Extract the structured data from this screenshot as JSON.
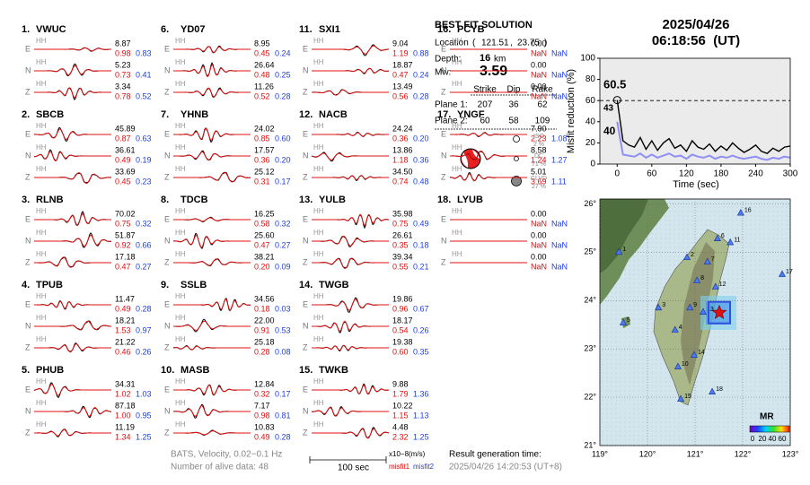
{
  "stations": [
    {
      "num": "1.",
      "name": "VWUC",
      "components": [
        {
          "comp": "E",
          "inst": "HH",
          "amp": "8.87",
          "misfit1": "0.98",
          "misfit2": "0.83"
        },
        {
          "comp": "N",
          "inst": "HH",
          "amp": "5.23",
          "misfit1": "0.73",
          "misfit2": "0.41"
        },
        {
          "comp": "Z",
          "inst": "HH",
          "amp": "3.34",
          "misfit1": "0.78",
          "misfit2": "0.52"
        }
      ]
    },
    {
      "num": "2.",
      "name": "SBCB",
      "components": [
        {
          "comp": "E",
          "inst": "HH",
          "amp": "45.89",
          "misfit1": "0.87",
          "misfit2": "0.63"
        },
        {
          "comp": "N",
          "inst": "HH",
          "amp": "36.61",
          "misfit1": "0.49",
          "misfit2": "0.19"
        },
        {
          "comp": "Z",
          "inst": "HH",
          "amp": "33.69",
          "misfit1": "0.45",
          "misfit2": "0.23"
        }
      ]
    },
    {
      "num": "3.",
      "name": "RLNB",
      "components": [
        {
          "comp": "E",
          "inst": "HH",
          "amp": "70.02",
          "misfit1": "0.75",
          "misfit2": "0.32"
        },
        {
          "comp": "N",
          "inst": "HH",
          "amp": "51.87",
          "misfit1": "0.92",
          "misfit2": "0.66"
        },
        {
          "comp": "Z",
          "inst": "HH",
          "amp": "17.18",
          "misfit1": "0.47",
          "misfit2": "0.27"
        }
      ]
    },
    {
      "num": "4.",
      "name": "TPUB",
      "components": [
        {
          "comp": "E",
          "inst": "HH",
          "amp": "11.47",
          "misfit1": "0.49",
          "misfit2": "0.28"
        },
        {
          "comp": "N",
          "inst": "HH",
          "amp": "18.21",
          "misfit1": "1.53",
          "misfit2": "0.97"
        },
        {
          "comp": "Z",
          "inst": "HH",
          "amp": "21.22",
          "misfit1": "0.46",
          "misfit2": "0.26"
        }
      ]
    },
    {
      "num": "5.",
      "name": "PHUB",
      "components": [
        {
          "comp": "E",
          "inst": "HH",
          "amp": "34.31",
          "misfit1": "1.02",
          "misfit2": "1.03"
        },
        {
          "comp": "N",
          "inst": "HH",
          "amp": "87.18",
          "misfit1": "1.00",
          "misfit2": "0.95"
        },
        {
          "comp": "Z",
          "inst": "HH",
          "amp": "11.19",
          "misfit1": "1.34",
          "misfit2": "1.25"
        }
      ]
    },
    {
      "num": "6.",
      "name": "YD07",
      "components": [
        {
          "comp": "E",
          "inst": "HH",
          "amp": "8.95",
          "misfit1": "0.45",
          "misfit2": "0.24"
        },
        {
          "comp": "N",
          "inst": "HH",
          "amp": "26.64",
          "misfit1": "0.48",
          "misfit2": "0.25"
        },
        {
          "comp": "Z",
          "inst": "HH",
          "amp": "11.26",
          "misfit1": "0.52",
          "misfit2": "0.28"
        }
      ]
    },
    {
      "num": "7.",
      "name": "YHNB",
      "components": [
        {
          "comp": "E",
          "inst": "HH",
          "amp": "24.02",
          "misfit1": "0.85",
          "misfit2": "0.60"
        },
        {
          "comp": "N",
          "inst": "HH",
          "amp": "17.57",
          "misfit1": "0.36",
          "misfit2": "0.20"
        },
        {
          "comp": "Z",
          "inst": "HH",
          "amp": "25.12",
          "misfit1": "0.31",
          "misfit2": "0.17"
        }
      ]
    },
    {
      "num": "8.",
      "name": "TDCB",
      "components": [
        {
          "comp": "E",
          "inst": "HH",
          "amp": "16.25",
          "misfit1": "0.58",
          "misfit2": "0.32"
        },
        {
          "comp": "N",
          "inst": "HH",
          "amp": "25.60",
          "misfit1": "0.47",
          "misfit2": "0.27"
        },
        {
          "comp": "Z",
          "inst": "HH",
          "amp": "38.21",
          "misfit1": "0.20",
          "misfit2": "0.09"
        }
      ]
    },
    {
      "num": "9.",
      "name": "SSLB",
      "components": [
        {
          "comp": "E",
          "inst": "HH",
          "amp": "34.56",
          "misfit1": "0.18",
          "misfit2": "0.03"
        },
        {
          "comp": "N",
          "inst": "HH",
          "amp": "22.00",
          "misfit1": "0.91",
          "misfit2": "0.53"
        },
        {
          "comp": "Z",
          "inst": "HH",
          "amp": "25.18",
          "misfit1": "0.28",
          "misfit2": "0.08"
        }
      ]
    },
    {
      "num": "10.",
      "name": "MASB",
      "components": [
        {
          "comp": "E",
          "inst": "HH",
          "amp": "12.84",
          "misfit1": "0.32",
          "misfit2": "0.17"
        },
        {
          "comp": "N",
          "inst": "HH",
          "amp": "7.17",
          "misfit1": "0.98",
          "misfit2": "0.81"
        },
        {
          "comp": "Z",
          "inst": "HH",
          "amp": "10.83",
          "misfit1": "0.49",
          "misfit2": "0.28"
        }
      ]
    },
    {
      "num": "11.",
      "name": "SXI1",
      "components": [
        {
          "comp": "E",
          "inst": "HH",
          "amp": "9.04",
          "misfit1": "1.19",
          "misfit2": "0.88"
        },
        {
          "comp": "N",
          "inst": "HH",
          "amp": "18.87",
          "misfit1": "0.47",
          "misfit2": "0.24"
        },
        {
          "comp": "Z",
          "inst": "HH",
          "amp": "13.49",
          "misfit1": "0.56",
          "misfit2": "0.28"
        }
      ]
    },
    {
      "num": "12.",
      "name": "NACB",
      "components": [
        {
          "comp": "E",
          "inst": "HH",
          "amp": "24.24",
          "misfit1": "0.36",
          "misfit2": "0.20"
        },
        {
          "comp": "N",
          "inst": "HH",
          "amp": "13.86",
          "misfit1": "1.18",
          "misfit2": "0.36"
        },
        {
          "comp": "Z",
          "inst": "HH",
          "amp": "34.50",
          "misfit1": "0.74",
          "misfit2": "0.48"
        }
      ]
    },
    {
      "num": "13.",
      "name": "YULB",
      "components": [
        {
          "comp": "E",
          "inst": "HH",
          "amp": "35.98",
          "misfit1": "0.75",
          "misfit2": "0.49"
        },
        {
          "comp": "N",
          "inst": "HH",
          "amp": "26.61",
          "misfit1": "0.35",
          "misfit2": "0.18"
        },
        {
          "comp": "Z",
          "inst": "HH",
          "amp": "39.34",
          "misfit1": "0.55",
          "misfit2": "0.21"
        }
      ]
    },
    {
      "num": "14.",
      "name": "TWGB",
      "components": [
        {
          "comp": "E",
          "inst": "HH",
          "amp": "19.86",
          "misfit1": "0.96",
          "misfit2": "0.67"
        },
        {
          "comp": "N",
          "inst": "HH",
          "amp": "18.17",
          "misfit1": "0.54",
          "misfit2": "0.26"
        },
        {
          "comp": "Z",
          "inst": "HH",
          "amp": "19.38",
          "misfit1": "0.60",
          "misfit2": "0.35"
        }
      ]
    },
    {
      "num": "15.",
      "name": "TWKB",
      "components": [
        {
          "comp": "E",
          "inst": "HH",
          "amp": "9.88",
          "misfit1": "1.79",
          "misfit2": "1.36"
        },
        {
          "comp": "N",
          "inst": "HH",
          "amp": "10.22",
          "misfit1": "1.15",
          "misfit2": "1.13"
        },
        {
          "comp": "Z",
          "inst": "HH",
          "amp": "4.48",
          "misfit1": "2.32",
          "misfit2": "1.25"
        }
      ]
    },
    {
      "num": "16.",
      "name": "PCYB",
      "components": [
        {
          "comp": "E",
          "inst": "HH",
          "amp": "0.00",
          "misfit1": "NaN",
          "misfit2": "NaN"
        },
        {
          "comp": "N",
          "inst": "HH",
          "amp": "0.00",
          "misfit1": "NaN",
          "misfit2": "NaN"
        },
        {
          "comp": "Z",
          "inst": "HH",
          "amp": "0.00",
          "misfit1": "NaN",
          "misfit2": "NaN"
        }
      ]
    },
    {
      "num": "17.",
      "name": "YNGF",
      "components": [
        {
          "comp": "E",
          "inst": "HH",
          "amp": "7.90",
          "misfit1": "2.23",
          "misfit2": "1.08"
        },
        {
          "comp": "N",
          "inst": "HH",
          "amp": "8.58",
          "misfit1": "1.24",
          "misfit2": "1.27"
        },
        {
          "comp": "Z",
          "inst": "HH",
          "amp": "5.01",
          "misfit1": "3.69",
          "misfit2": "1.11"
        }
      ]
    },
    {
      "num": "18.",
      "name": "LYUB",
      "components": [
        {
          "comp": "E",
          "inst": "HH",
          "amp": "0.00",
          "misfit1": "NaN",
          "misfit2": "NaN"
        },
        {
          "comp": "N",
          "inst": "HH",
          "amp": "0.00",
          "misfit1": "NaN",
          "misfit2": "NaN"
        },
        {
          "comp": "Z",
          "inst": "HH",
          "amp": "0.00",
          "misfit1": "NaN",
          "misfit2": "NaN"
        }
      ]
    }
  ],
  "solution": {
    "title": "BEST FIT SOLUTION",
    "location_label": "Location",
    "lon": 121.51,
    "lat": 23.75,
    "depth_label": "Depth:",
    "depth": 16,
    "depth_unit": "km",
    "mw_label": "Mw:",
    "mw": "3.59",
    "headers": [
      "Strike",
      "Dip",
      "Rake"
    ],
    "planes": [
      {
        "label": "Plane 1:",
        "values": [
          207,
          36,
          62
        ]
      },
      {
        "label": "Plane 2:",
        "values": [
          60,
          58,
          109
        ]
      }
    ],
    "components": [
      {
        "name": "ISO",
        "pct": "2 %"
      },
      {
        "name": "DC",
        "pct": "71 %"
      },
      {
        "name": "CLVD",
        "pct": "27 %"
      }
    ]
  },
  "datetime": {
    "date": "2025/04/26",
    "time": "06:18:56  (UT)"
  },
  "chart_data": {
    "type": "line",
    "xlabel": "Time (sec)",
    "ylabel": "Misfit reduction (%)",
    "xlim": [
      -30,
      300
    ],
    "ylim": [
      0,
      100
    ],
    "xticks": [
      0,
      60,
      120,
      180,
      240,
      300
    ],
    "yticks": [
      0,
      20,
      40,
      60,
      80,
      100
    ],
    "x": [
      0,
      10,
      20,
      30,
      40,
      50,
      60,
      70,
      80,
      90,
      100,
      110,
      120,
      130,
      140,
      150,
      160,
      170,
      180,
      190,
      200,
      210,
      220,
      230,
      240,
      250,
      260,
      270,
      280,
      290,
      300
    ],
    "series": [
      {
        "name": "misfit1",
        "color": "#000000",
        "values": [
          60.5,
          22,
          18,
          16,
          25,
          14,
          22,
          13,
          20,
          24,
          15,
          18,
          12,
          22,
          16,
          14,
          19,
          12,
          17,
          13,
          20,
          15,
          11,
          14,
          18,
          12,
          10,
          15,
          12,
          16,
          17
        ]
      },
      {
        "name": "misfit2",
        "color": "#8f8ff5",
        "values": [
          40,
          9,
          8,
          7,
          10,
          6,
          9,
          6,
          8,
          10,
          7,
          8,
          5,
          9,
          7,
          6,
          8,
          5,
          7,
          6,
          8,
          6,
          5,
          6,
          7,
          5,
          4,
          6,
          5,
          7,
          6
        ]
      }
    ],
    "annotations": [
      "60.5",
      "43",
      "40"
    ],
    "threshold": 60
  },
  "map": {
    "xlim": [
      119,
      123
    ],
    "ylim": [
      21,
      26.1
    ],
    "xticks": [
      {
        "value": 119,
        "label": "119°"
      },
      {
        "value": 120,
        "label": "120°"
      },
      {
        "value": 121,
        "label": "121°"
      },
      {
        "value": 122,
        "label": "122°"
      },
      {
        "value": 123,
        "label": "123°"
      }
    ],
    "yticks": [
      {
        "value": 21,
        "label": "21°"
      },
      {
        "value": 22,
        "label": "22°"
      },
      {
        "value": 23,
        "label": "23°"
      },
      {
        "value": 24,
        "label": "24°"
      },
      {
        "value": 25,
        "label": "25°"
      },
      {
        "value": 26,
        "label": "26°"
      }
    ],
    "stations": [
      {
        "label": "1",
        "lon": 119.4,
        "lat": 25.0
      },
      {
        "label": "2",
        "lon": 120.83,
        "lat": 24.89
      },
      {
        "label": "3",
        "lon": 120.23,
        "lat": 23.85
      },
      {
        "label": "4",
        "lon": 120.58,
        "lat": 23.39
      },
      {
        "label": "5",
        "lon": 119.49,
        "lat": 23.54
      },
      {
        "label": "6",
        "lon": 121.47,
        "lat": 25.28
      },
      {
        "label": "7",
        "lon": 121.26,
        "lat": 24.8
      },
      {
        "label": "8",
        "lon": 121.04,
        "lat": 24.41
      },
      {
        "label": "9",
        "lon": 120.89,
        "lat": 23.85
      },
      {
        "label": "10",
        "lon": 120.64,
        "lat": 22.63
      },
      {
        "label": "11",
        "lon": 121.74,
        "lat": 25.2
      },
      {
        "label": "12",
        "lon": 121.43,
        "lat": 24.28
      },
      {
        "label": "13",
        "lon": 121.17,
        "lat": 23.76
      },
      {
        "label": "14",
        "lon": 120.98,
        "lat": 22.87
      },
      {
        "label": "15",
        "lon": 120.7,
        "lat": 21.96
      },
      {
        "label": "16",
        "lon": 121.96,
        "lat": 25.81
      },
      {
        "label": "17",
        "lon": 122.83,
        "lat": 24.54
      },
      {
        "label": "18",
        "lon": 121.36,
        "lat": 22.11
      }
    ],
    "colorbar": {
      "title": "MR",
      "ticks": [
        "0",
        "20",
        "40",
        "60"
      ]
    }
  },
  "footer": {
    "info": "BATS, Velocity, 0.02−0.1 Hz",
    "alive": "Number of alive data: 48",
    "scale": "100 sec",
    "units": "x10−8(m/s)",
    "misfit1": "misfit1",
    "misfit2": "misfit2",
    "result_label": "Result generation time:",
    "result_time": "2025/04/26 14:20:53 (UT+8)"
  }
}
